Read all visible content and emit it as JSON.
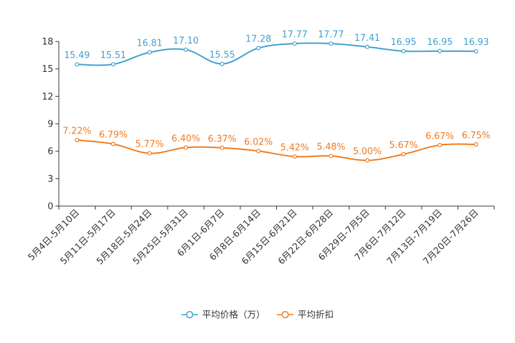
{
  "chart_data": {
    "type": "line",
    "title": "",
    "xlabel": "",
    "ylabel": "",
    "ylim": [
      0,
      18
    ],
    "yticks": [
      0,
      3,
      6,
      9,
      12,
      15,
      18
    ],
    "grid": false,
    "legend_position": "bottom-center",
    "categories": [
      "5月4日-5月10日",
      "5月11日-5月17日",
      "5月18日-5月24日",
      "5月25日-5月31日",
      "6月1日-6月7日",
      "6月8日-6月14日",
      "6月15日-6月21日",
      "6月22日-6月28日",
      "6月29日-7月5日",
      "7月6日-7月12日",
      "7月13日-7月19日",
      "7月20日-7月26日"
    ],
    "series": [
      {
        "name": "平均价格（万）",
        "color": "#3fa0d0",
        "values": [
          15.49,
          15.51,
          16.81,
          17.1,
          15.55,
          17.28,
          17.77,
          17.77,
          17.41,
          16.95,
          16.95,
          16.93
        ],
        "labels": [
          "15.49",
          "15.51",
          "16.81",
          "17.10",
          "15.55",
          "17.28",
          "17.77",
          "17.77",
          "17.41",
          "16.95",
          "16.95",
          "16.93"
        ]
      },
      {
        "name": "平均折扣",
        "color": "#f07a1e",
        "values": [
          7.22,
          6.79,
          5.77,
          6.4,
          6.37,
          6.02,
          5.42,
          5.48,
          5.0,
          5.67,
          6.67,
          6.75
        ],
        "labels": [
          "7.22%",
          "6.79%",
          "5.77%",
          "6.40%",
          "6.37%",
          "6.02%",
          "5.42%",
          "5.48%",
          "5.00%",
          "5.67%",
          "6.67%",
          "6.75%"
        ]
      }
    ]
  }
}
